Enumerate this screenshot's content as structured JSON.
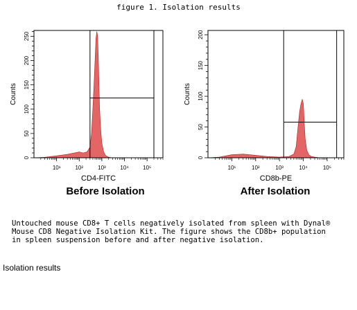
{
  "figure_title": "figure 1. Isolation results",
  "chart_data": [
    {
      "type": "histogram",
      "caption": "Before Isolation",
      "xlabel": "CD4-FITC",
      "ylabel": "Counts",
      "x_scale": "log",
      "xlim": [
        1,
        500000
      ],
      "ylim": [
        0,
        262
      ],
      "y_ticks": [
        0,
        50,
        100,
        150,
        200,
        250
      ],
      "x_ticks": [
        {
          "value": 10,
          "label": "10¹"
        },
        {
          "value": 100,
          "label": "10²"
        },
        {
          "value": 1000,
          "label": "10³"
        },
        {
          "value": 10000,
          "label": "10⁴"
        },
        {
          "value": 100000,
          "label": "10⁵"
        }
      ],
      "gate_x": 300,
      "gate_x2": 200000,
      "gate_y": 123,
      "fill_color": "#e46565",
      "x": [
        1,
        3,
        10,
        30,
        100,
        150,
        220,
        300,
        350,
        400,
        450,
        500,
        550,
        600,
        650,
        700,
        750,
        800,
        900,
        1000,
        1200,
        1500,
        2000,
        3000
      ],
      "counts": [
        0,
        1,
        4,
        7,
        12,
        10,
        12,
        22,
        50,
        100,
        150,
        200,
        245,
        260,
        250,
        200,
        150,
        100,
        55,
        30,
        12,
        4,
        1,
        0
      ]
    },
    {
      "type": "histogram",
      "caption": "After Isolation",
      "xlabel": "CD8b-PE",
      "ylabel": "Counts",
      "x_scale": "log",
      "xlim": [
        1,
        500000
      ],
      "ylim": [
        0,
        207
      ],
      "y_ticks": [
        0,
        50,
        100,
        150,
        200
      ],
      "x_ticks": [
        {
          "value": 10,
          "label": "10¹"
        },
        {
          "value": 100,
          "label": "10²"
        },
        {
          "value": 1000,
          "label": "10³"
        },
        {
          "value": 10000,
          "label": "10⁴"
        },
        {
          "value": 100000,
          "label": "10⁵"
        }
      ],
      "gate_x": 1500,
      "gate_x2": 250000,
      "gate_y": 58,
      "fill_color": "#e46565",
      "x": [
        1,
        3,
        10,
        30,
        100,
        300,
        1000,
        2500,
        4000,
        5000,
        6000,
        7000,
        8000,
        9000,
        10000,
        11000,
        12000,
        14000,
        17000,
        22000,
        30000,
        50000,
        100000
      ],
      "counts": [
        0,
        1,
        5,
        6,
        4,
        2,
        1,
        2,
        6,
        18,
        50,
        75,
        88,
        95,
        88,
        55,
        30,
        12,
        5,
        2,
        1,
        0,
        0
      ]
    }
  ],
  "description": "Untouched mouse CD8+ T cells negatively isolated from spleen with Dynal®\nMouse CD8 Negative Isolation Kit.  The figure shows the CD8b+ population\nin spleen suspension before and after negative isolation.",
  "bottom_label": "Isolation results"
}
